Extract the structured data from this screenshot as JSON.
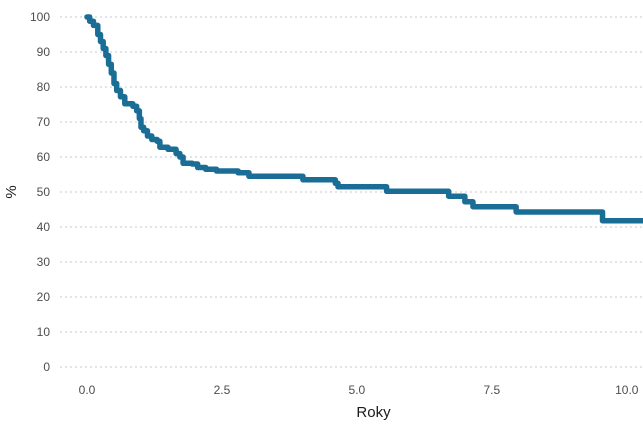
{
  "chart_data": {
    "type": "line",
    "title": "",
    "xlabel": "Roky",
    "ylabel": "%",
    "xlim": [
      -0.5,
      10.3
    ],
    "ylim": [
      -2,
      102
    ],
    "x_ticks": [
      0.0,
      2.5,
      5.0,
      7.5,
      10.0
    ],
    "x_tick_labels": [
      "0.0",
      "2.5",
      "5.0",
      "7.5",
      "10.0"
    ],
    "y_ticks": [
      0,
      10,
      20,
      30,
      40,
      50,
      60,
      70,
      80,
      90,
      100
    ],
    "y_tick_labels": [
      "0",
      "10",
      "20",
      "30",
      "40",
      "50",
      "60",
      "70",
      "80",
      "90",
      "100"
    ],
    "grid": "horizontal dotted",
    "line_color": "#1a6e96",
    "series": [
      {
        "step": true,
        "points": [
          [
            0.0,
            100
          ],
          [
            0.05,
            98.8
          ],
          [
            0.12,
            97.6
          ],
          [
            0.2,
            95
          ],
          [
            0.25,
            93
          ],
          [
            0.3,
            91
          ],
          [
            0.35,
            89
          ],
          [
            0.4,
            86.5
          ],
          [
            0.45,
            84
          ],
          [
            0.5,
            81
          ],
          [
            0.55,
            79
          ],
          [
            0.62,
            77.2
          ],
          [
            0.7,
            75.2
          ],
          [
            0.85,
            74.5
          ],
          [
            0.92,
            73.2
          ],
          [
            0.97,
            71
          ],
          [
            1.0,
            68.5
          ],
          [
            1.05,
            67.5
          ],
          [
            1.12,
            66
          ],
          [
            1.2,
            65
          ],
          [
            1.3,
            64.5
          ],
          [
            1.35,
            62.8
          ],
          [
            1.5,
            62.2
          ],
          [
            1.65,
            61
          ],
          [
            1.72,
            60
          ],
          [
            1.78,
            58.2
          ],
          [
            1.95,
            58
          ],
          [
            2.05,
            57
          ],
          [
            2.2,
            56.5
          ],
          [
            2.4,
            56
          ],
          [
            2.8,
            55.5
          ],
          [
            3.0,
            54.5
          ],
          [
            3.5,
            54.5
          ],
          [
            3.95,
            54.5
          ],
          [
            4.0,
            53.5
          ],
          [
            4.6,
            52.5
          ],
          [
            4.65,
            51.5
          ],
          [
            5.5,
            51.5
          ],
          [
            5.55,
            50.2
          ],
          [
            6.65,
            50.2
          ],
          [
            6.7,
            48.8
          ],
          [
            7.0,
            47.2
          ],
          [
            7.15,
            45.8
          ],
          [
            7.95,
            44.3
          ],
          [
            9.5,
            44.3
          ],
          [
            9.55,
            41.8
          ],
          [
            10.3,
            41.8
          ]
        ]
      }
    ]
  }
}
